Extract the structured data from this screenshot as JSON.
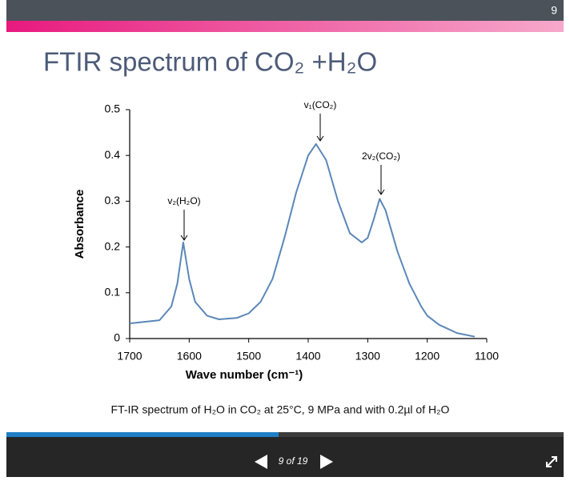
{
  "slide": {
    "number": "9",
    "title": "FTIR spectrum of CO₂ +H₂O",
    "caption": "FT-IR spectrum of H₂O in CO₂ at 25°C, 9 MPa and with 0.2µl of H₂O"
  },
  "chart_data": {
    "type": "line",
    "x_label": "Wave number (cm⁻¹)",
    "y_label": "Absorbance",
    "x": [
      1700,
      1650,
      1630,
      1620,
      1610,
      1600,
      1590,
      1570,
      1550,
      1520,
      1500,
      1480,
      1460,
      1440,
      1420,
      1400,
      1387,
      1370,
      1350,
      1330,
      1310,
      1300,
      1290,
      1280,
      1270,
      1250,
      1230,
      1210,
      1200,
      1180,
      1150,
      1120
    ],
    "values": [
      0.033,
      0.04,
      0.07,
      0.12,
      0.21,
      0.13,
      0.08,
      0.05,
      0.042,
      0.045,
      0.055,
      0.08,
      0.13,
      0.22,
      0.32,
      0.4,
      0.425,
      0.39,
      0.3,
      0.23,
      0.21,
      0.22,
      0.26,
      0.305,
      0.28,
      0.19,
      0.12,
      0.07,
      0.05,
      0.03,
      0.012,
      0.004
    ],
    "color": "#5b87b8",
    "xlim": [
      1700,
      1100
    ],
    "xticks": [
      1700,
      1600,
      1500,
      1400,
      1300,
      1200,
      1100
    ],
    "ylim": [
      0,
      0.5
    ],
    "yticks": [
      0,
      0.1,
      0.2,
      0.3,
      0.4,
      0.5
    ],
    "annotations": [
      "v₂(H₂O)",
      "v₁(CO₂)",
      "2v₂(CO₂)"
    ]
  },
  "viewer": {
    "page_indicator": "9 of 19"
  }
}
